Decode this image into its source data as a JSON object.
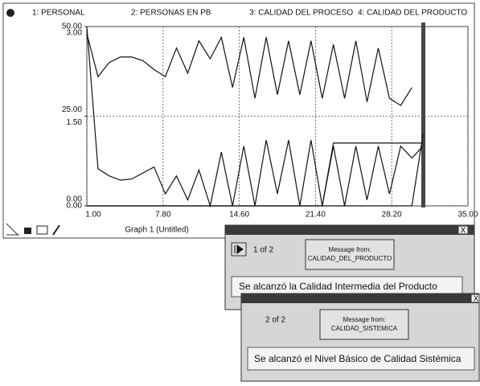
{
  "chart_data": {
    "type": "line",
    "caption": "Graph 1 (Untitled)",
    "x": [
      1,
      2,
      3,
      4,
      5,
      6,
      7,
      8,
      9,
      10,
      11,
      12,
      13,
      14,
      15,
      16,
      17,
      18,
      19,
      20,
      21,
      22,
      23,
      24,
      25,
      26,
      27,
      28,
      29,
      30,
      31
    ],
    "xlim": [
      1,
      35
    ],
    "xticks": [
      {
        "value": 1,
        "label": "1.00"
      },
      {
        "value": 7.8,
        "label": "7.80"
      },
      {
        "value": 14.6,
        "label": "14.60"
      },
      {
        "value": 21.4,
        "label": "21.40"
      },
      {
        "value": 28.2,
        "label": "28.20"
      },
      {
        "value": 35,
        "label": "35.00"
      }
    ],
    "ylim": [
      0,
      50
    ],
    "yticks": [
      {
        "value": 0,
        "label": "0.00"
      },
      {
        "value": 25,
        "label": "25.00"
      },
      {
        "value": 50,
        "label": "50.00"
      }
    ],
    "y2lim": [
      0,
      3
    ],
    "y2ticks": [
      {
        "value": 0,
        "label": "0.00"
      },
      {
        "value": 1.5,
        "label": "1.50"
      },
      {
        "value": 3,
        "label": "3.00"
      }
    ],
    "grid": true,
    "series": [
      {
        "name": "1: PERSONAL",
        "color": "#111111",
        "axis": "y2",
        "values": [
          3.0,
          0.62,
          0.5,
          0.43,
          0.45,
          0.55,
          0.65,
          0.2,
          0.5,
          0.1,
          0.6,
          0,
          0.9,
          0,
          1.0,
          0,
          1.1,
          0.2,
          1.1,
          0,
          1.1,
          0,
          1.0,
          0,
          1.0,
          0.1,
          1.0,
          0.2,
          1.0,
          0.8,
          1.0
        ]
      },
      {
        "name": "2: PERSONAS EN PB",
        "color": "#111111",
        "values": [
          48,
          36,
          40,
          41.5,
          41.5,
          40.5,
          38,
          36,
          44,
          37,
          46,
          41,
          47,
          33,
          47,
          30,
          47,
          31,
          46,
          31,
          46,
          30,
          45,
          30,
          46,
          29,
          44,
          30,
          28,
          33,
          null
        ]
      },
      {
        "name": "3: CALIDAD DEL PROCESO",
        "color": "#111111",
        "axis": "y2",
        "values": [
          0,
          0,
          0,
          0,
          0,
          0,
          0,
          0,
          0,
          0,
          0,
          0,
          0,
          0,
          0,
          0,
          0,
          0,
          0,
          0,
          0,
          0,
          1.05,
          1.05,
          1.05,
          1.05,
          1.05,
          1.05,
          1.05,
          1.05,
          1.05
        ]
      },
      {
        "name": "4: CALIDAD DEL PRODUCTO",
        "color": "#111111",
        "axis": "y2",
        "values": [
          0,
          0,
          0,
          0,
          0,
          0,
          0,
          0,
          0,
          0,
          0,
          0,
          0,
          0,
          0,
          0,
          0,
          0,
          0,
          0,
          0,
          0,
          0,
          0,
          0,
          0,
          0,
          0,
          0,
          0,
          1.2
        ]
      }
    ]
  },
  "dialogs": [
    {
      "close": "X",
      "counter": "1 of 2",
      "button": [
        "Message from:",
        "CALIDAD_DEL_PRODUCTO"
      ],
      "message": "Se alcanzó la Calidad Intermedia del Producto"
    },
    {
      "close": "X",
      "counter": "2 of 2",
      "button": [
        "Message from:",
        "CALIDAD_SISTEMICA"
      ],
      "message": "Se alcanzó el Nivel Básico de Calidad Sistémica"
    }
  ]
}
